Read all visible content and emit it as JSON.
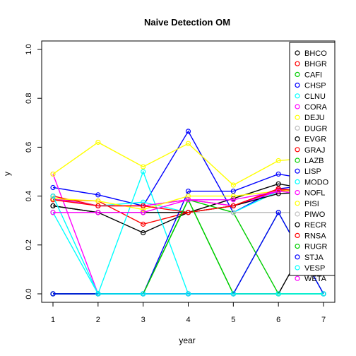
{
  "chart_data": {
    "type": "line",
    "title": "Naive Detection OM",
    "xlabel": "year",
    "ylabel": "y",
    "xlim": [
      1,
      7
    ],
    "ylim": [
      0,
      1
    ],
    "x": [
      1,
      2,
      3,
      4,
      5,
      6,
      7
    ],
    "x_ticks": [
      "1",
      "2",
      "3",
      "4",
      "5",
      "6",
      "7"
    ],
    "y_ticks": [
      "0.0",
      "0.2",
      "0.4",
      "0.6",
      "0.8",
      "1.0"
    ],
    "grid": false,
    "legend_position": "right",
    "series": [
      {
        "name": "BHCO",
        "color": "#000000",
        "values": [
          0.36,
          0.333,
          0.25,
          0.333,
          0.39,
          0.45,
          0.42
        ]
      },
      {
        "name": "BHGR",
        "color": "#ff0000",
        "values": [
          0.385,
          0.38,
          0.285,
          0.333,
          0.36,
          0.43,
          0.41
        ]
      },
      {
        "name": "CAFI",
        "color": "#00cd00",
        "values": [
          0,
          0,
          0,
          0.385,
          0,
          0.333,
          0
        ]
      },
      {
        "name": "CHSP",
        "color": "#0000ff",
        "values": [
          0.435,
          0.405,
          0.36,
          0.665,
          0.333,
          0.43,
          0.45
        ]
      },
      {
        "name": "CLNU",
        "color": "#00ffff",
        "values": [
          0.333,
          0,
          0.5,
          0,
          0,
          0,
          0
        ]
      },
      {
        "name": "CORA",
        "color": "#ff00ff",
        "values": [
          0.49,
          0,
          0,
          0,
          0,
          0,
          0
        ]
      },
      {
        "name": "DEJU",
        "color": "#ffff00",
        "values": [
          0.49,
          0.62,
          0.52,
          0.615,
          0.445,
          0.545,
          0.56
        ]
      },
      {
        "name": "DUGR",
        "color": "#bebebe",
        "values": [
          0.333,
          0.333,
          0.333,
          0.333,
          0.333,
          0.333,
          0.333
        ]
      },
      {
        "name": "EVGR",
        "color": "#000000",
        "values": [
          0,
          0,
          0,
          0,
          0,
          0,
          0.333
        ]
      },
      {
        "name": "GRAJ",
        "color": "#ff0000",
        "values": [
          0.4,
          0.36,
          0.36,
          0.385,
          0.36,
          0.425,
          0.41
        ]
      },
      {
        "name": "LAZB",
        "color": "#00cd00",
        "values": [
          0,
          0,
          0,
          0.385,
          0.333,
          0,
          0
        ]
      },
      {
        "name": "LISP",
        "color": "#0000ff",
        "values": [
          0,
          0,
          0,
          0.42,
          0.42,
          0.49,
          0.46
        ]
      },
      {
        "name": "MODO",
        "color": "#00ffff",
        "values": [
          0.39,
          0.36,
          0.375,
          0.333,
          0.333,
          0.42,
          0.4
        ]
      },
      {
        "name": "NOFL",
        "color": "#ff00ff",
        "values": [
          0.39,
          0.36,
          0.36,
          0.385,
          0.36,
          0.42,
          0.4
        ]
      },
      {
        "name": "PISI",
        "color": "#ffff00",
        "values": [
          0.39,
          0.38,
          0.345,
          0.4,
          0.4,
          0.42,
          0.43
        ]
      },
      {
        "name": "PIWO",
        "color": "#bebebe",
        "values": [
          0.333,
          0.333,
          0.333,
          0.333,
          0.333,
          0.333,
          0.333
        ]
      },
      {
        "name": "RECR",
        "color": "#000000",
        "values": [
          0.36,
          0.333,
          0.333,
          0.333,
          0.36,
          0.41,
          0.42
        ]
      },
      {
        "name": "RNSA",
        "color": "#ff0000",
        "values": [
          0.385,
          0.36,
          0.36,
          0.333,
          0.36,
          0.43,
          0.41
        ]
      },
      {
        "name": "RUGR",
        "color": "#00cd00",
        "values": [
          0,
          0,
          0,
          0.385,
          0,
          0,
          0
        ]
      },
      {
        "name": "STJA",
        "color": "#0000ff",
        "values": [
          0,
          0,
          0,
          0,
          0,
          0.333,
          0
        ]
      },
      {
        "name": "VESP",
        "color": "#00ffff",
        "values": [
          0.4,
          0,
          0,
          0,
          0,
          0,
          0
        ]
      },
      {
        "name": "WETA",
        "color": "#ff00ff",
        "values": [
          0.333,
          0.333,
          0.333,
          0.385,
          0.385,
          0.42,
          0.4
        ]
      }
    ]
  }
}
